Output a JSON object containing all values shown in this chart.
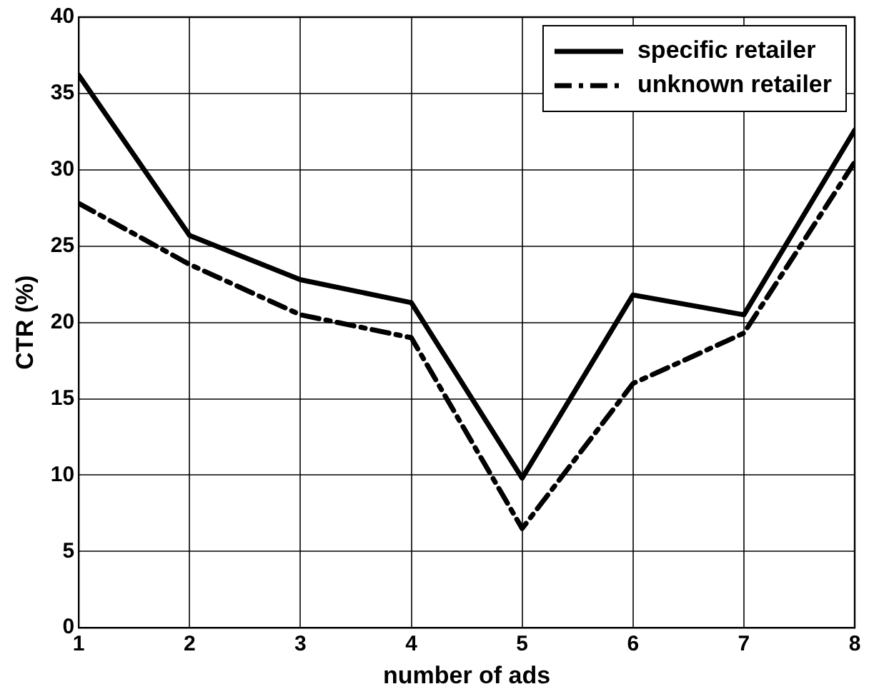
{
  "chart_data": {
    "type": "line",
    "xlabel": "number of ads",
    "ylabel": "CTR (%)",
    "x": [
      1,
      2,
      3,
      4,
      5,
      6,
      7,
      8
    ],
    "xlim": [
      1,
      8
    ],
    "xticks": [
      1,
      2,
      3,
      4,
      5,
      6,
      7,
      8
    ],
    "ylim": [
      0,
      40
    ],
    "yticks": [
      0,
      5,
      10,
      15,
      20,
      25,
      30,
      35,
      40
    ],
    "grid": true,
    "legend": "top right",
    "marker": "none",
    "series": [
      {
        "name": "specific retailer",
        "color": "#000000",
        "line_style": "solid",
        "values": [
          36.2,
          25.7,
          22.8,
          21.3,
          9.8,
          21.8,
          20.5,
          32.6
        ]
      },
      {
        "name": "unknown retailer",
        "color": "#000000",
        "line_style": "dashdot",
        "values": [
          27.8,
          23.8,
          20.5,
          19.0,
          6.5,
          16.0,
          19.3,
          30.5
        ]
      }
    ]
  }
}
